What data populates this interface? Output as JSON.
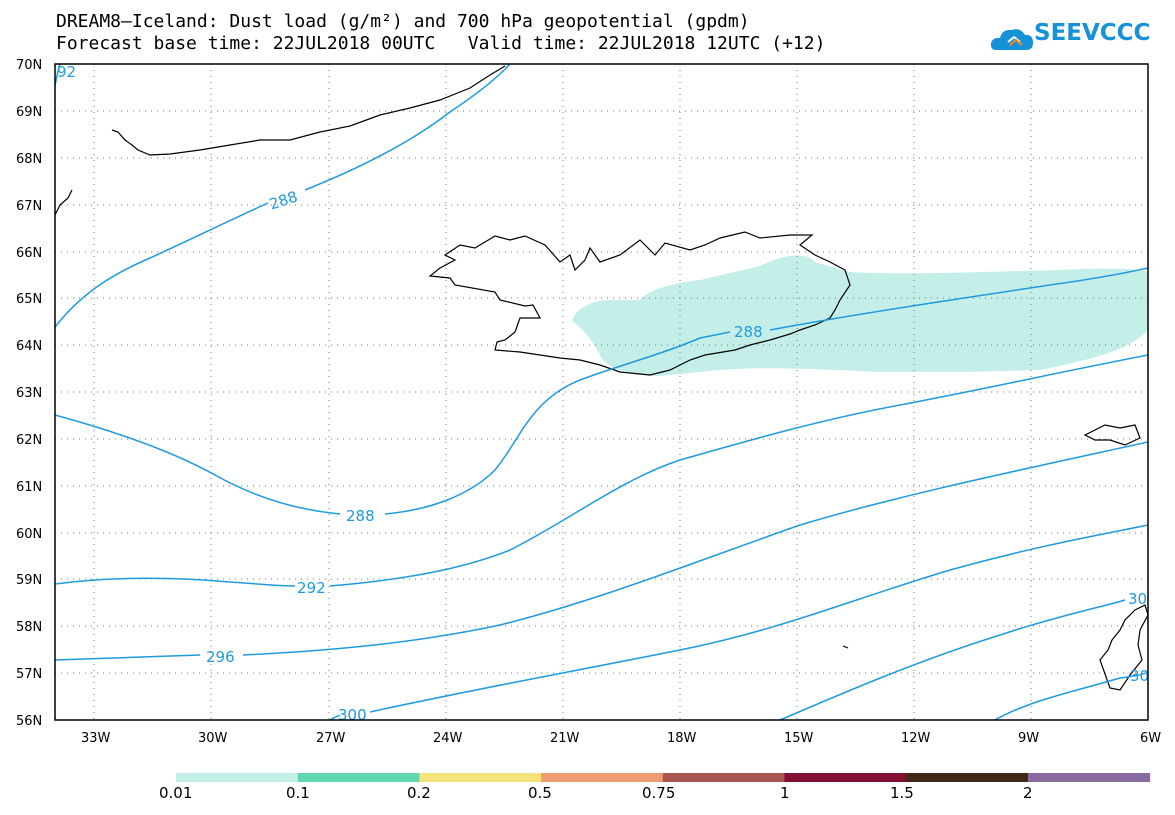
{
  "title_line1": "DREAM8–Iceland: Dust load (g/m²) and 700 hPa geopotential (gpdm)",
  "title_line2": "Forecast base time: 22JUL2018 00UTC   Valid time: 22JUL2018 12UTC (+12)",
  "logo_text": "SEEVCCC",
  "map": {
    "lon_range": [
      -34.5,
      -6
    ],
    "lat_range": [
      56,
      70
    ],
    "lat_labels": [
      "70N",
      "69N",
      "68N",
      "67N",
      "66N",
      "65N",
      "64N",
      "63N",
      "62N",
      "61N",
      "60N",
      "59N",
      "58N",
      "57N",
      "56N"
    ],
    "lon_labels": [
      "33W",
      "30W",
      "27W",
      "24W",
      "21W",
      "18W",
      "15W",
      "12W",
      "9W",
      "6W"
    ],
    "grid": "dotted",
    "contour_color": "#1e9ae0",
    "contour_labels": [
      {
        "text": "92"
      },
      {
        "text": "288"
      },
      {
        "text": "288"
      },
      {
        "text": "288"
      },
      {
        "text": "292"
      },
      {
        "text": "296"
      },
      {
        "text": "300"
      },
      {
        "text": "30"
      },
      {
        "text": "30"
      }
    ]
  },
  "colorbar": {
    "colors": [
      "#c4efe9",
      "#5fd8b0",
      "#f4e27a",
      "#ee9b72",
      "#a8574e",
      "#820f34",
      "#3e2a16",
      "#8a6ba0"
    ],
    "labels": [
      "0.01",
      "0.1",
      "0.2",
      "0.5",
      "0.75",
      "1",
      "1.5",
      "2"
    ]
  }
}
